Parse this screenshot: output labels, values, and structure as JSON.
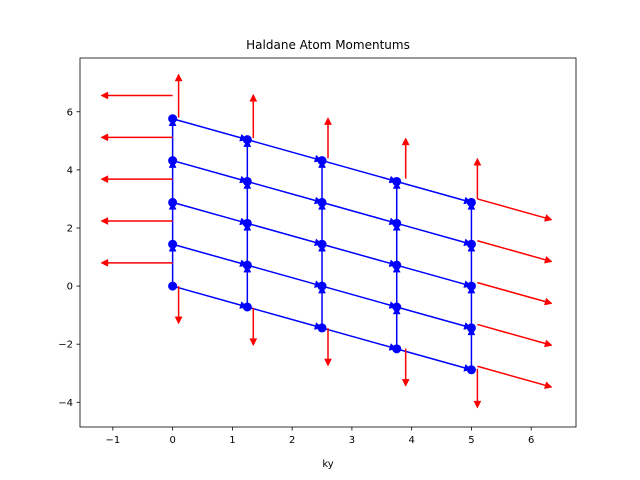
{
  "chart_data": {
    "type": "scatter",
    "title": "Haldane Atom Momentums",
    "xlabel": "ky",
    "ylabel": "",
    "xlim": [
      -1.55,
      6.75
    ],
    "ylim": [
      -4.85,
      7.85
    ],
    "xticks": [
      -1,
      0,
      1,
      2,
      3,
      4,
      5,
      6
    ],
    "yticks": [
      -4,
      -2,
      0,
      2,
      4,
      6
    ],
    "xtick_labels": [
      "−1",
      "0",
      "1",
      "2",
      "3",
      "4",
      "5",
      "6"
    ],
    "ytick_labels": [
      "−4",
      "−2",
      "0",
      "2",
      "4",
      "6"
    ],
    "grid": false,
    "legend": "none",
    "colors": {
      "atoms": "#0000ff",
      "momentum": "#ff0000",
      "spine": "#000000"
    },
    "lattice": {
      "columns_x": [
        0,
        1.25,
        2.5,
        3.75,
        5
      ],
      "rows_at_first_column": [
        0,
        1.44,
        2.88,
        4.32,
        5.76
      ],
      "column_drop": [
        0,
        -0.72,
        -1.44,
        -2.16,
        -2.88
      ]
    },
    "atom_points": [
      {
        "x": 0,
        "y": 0
      },
      {
        "x": 0,
        "y": 1.44
      },
      {
        "x": 0,
        "y": 2.88
      },
      {
        "x": 0,
        "y": 4.32
      },
      {
        "x": 0,
        "y": 5.76
      },
      {
        "x": 1.25,
        "y": -0.72
      },
      {
        "x": 1.25,
        "y": 0.72
      },
      {
        "x": 1.25,
        "y": 2.16
      },
      {
        "x": 1.25,
        "y": 3.6
      },
      {
        "x": 1.25,
        "y": 5.04
      },
      {
        "x": 2.5,
        "y": -1.44
      },
      {
        "x": 2.5,
        "y": 0
      },
      {
        "x": 2.5,
        "y": 1.44
      },
      {
        "x": 2.5,
        "y": 2.88
      },
      {
        "x": 2.5,
        "y": 4.32
      },
      {
        "x": 3.75,
        "y": -2.16
      },
      {
        "x": 3.75,
        "y": -0.72
      },
      {
        "x": 3.75,
        "y": 0.72
      },
      {
        "x": 3.75,
        "y": 2.16
      },
      {
        "x": 3.75,
        "y": 3.6
      },
      {
        "x": 5,
        "y": -2.88
      },
      {
        "x": 5,
        "y": -1.44
      },
      {
        "x": 5,
        "y": 0
      },
      {
        "x": 5,
        "y": 1.44
      },
      {
        "x": 5,
        "y": 2.88
      }
    ],
    "momentum_arrows": [
      {
        "x0": 0,
        "y0": 0.8,
        "x1": -1.2,
        "y1": 0.8
      },
      {
        "x0": 0,
        "y0": 2.24,
        "x1": -1.2,
        "y1": 2.24
      },
      {
        "x0": 0,
        "y0": 3.68,
        "x1": -1.2,
        "y1": 3.68
      },
      {
        "x0": 0,
        "y0": 5.12,
        "x1": -1.2,
        "y1": 5.12
      },
      {
        "x0": 0,
        "y0": 6.56,
        "x1": -1.2,
        "y1": 6.56
      },
      {
        "x0": 5.1,
        "y0": 3.0,
        "x1": 6.35,
        "y1": 2.28
      },
      {
        "x0": 5.1,
        "y0": 1.56,
        "x1": 6.35,
        "y1": 0.84
      },
      {
        "x0": 5.1,
        "y0": 0.12,
        "x1": 6.35,
        "y1": -0.6
      },
      {
        "x0": 5.1,
        "y0": -1.32,
        "x1": 6.35,
        "y1": -2.04
      },
      {
        "x0": 5.1,
        "y0": -2.76,
        "x1": 6.35,
        "y1": -3.48
      },
      {
        "x0": 0.1,
        "y0": 5.8,
        "x1": 0.1,
        "y1": 7.3
      },
      {
        "x0": 1.35,
        "y0": 5.1,
        "x1": 1.35,
        "y1": 6.6
      },
      {
        "x0": 2.6,
        "y0": 4.4,
        "x1": 2.6,
        "y1": 5.8
      },
      {
        "x0": 3.9,
        "y0": 3.7,
        "x1": 3.9,
        "y1": 5.1
      },
      {
        "x0": 5.1,
        "y0": 3.0,
        "x1": 5.1,
        "y1": 4.4
      },
      {
        "x0": 0.1,
        "y0": 0.0,
        "x1": 0.1,
        "y1": -1.3
      },
      {
        "x0": 1.35,
        "y0": -0.75,
        "x1": 1.35,
        "y1": -2.05
      },
      {
        "x0": 2.6,
        "y0": -1.45,
        "x1": 2.6,
        "y1": -2.75
      },
      {
        "x0": 3.9,
        "y0": -2.15,
        "x1": 3.9,
        "y1": -3.45
      },
      {
        "x0": 5.1,
        "y0": -2.85,
        "x1": 5.1,
        "y1": -4.2
      }
    ]
  }
}
